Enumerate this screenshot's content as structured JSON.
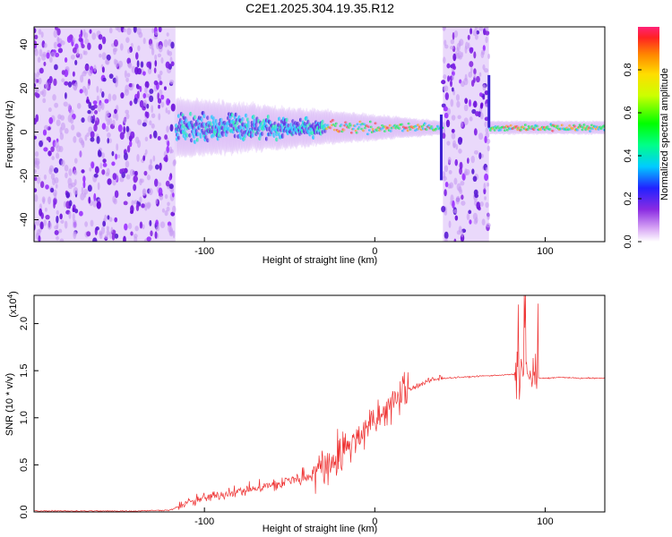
{
  "title": "C2E1.2025.304.19.35.R12",
  "chart_data": [
    {
      "type": "heatmap",
      "name": "spectrogram",
      "xlabel": "Height of straight line (km)",
      "ylabel": "Frequency (Hz)",
      "xlim": [
        -200,
        135
      ],
      "ylim": [
        -50,
        48
      ],
      "xticks": [
        -100,
        0,
        100
      ],
      "yticks": [
        -40,
        -20,
        0,
        20,
        40
      ],
      "xtick_labels": [
        "-100",
        "0",
        "100"
      ],
      "ytick_labels": [
        "-40",
        "-20",
        "0",
        "20",
        "40"
      ],
      "noise_regions": [
        [
          -200,
          -117
        ],
        [
          40,
          67
        ]
      ],
      "signal_band": {
        "start": -117,
        "end": 135,
        "center_hz": 2,
        "spread_start_hz": 9,
        "spread_end_hz": 2
      },
      "colorbar": {
        "label": "Normalized spectral amplitude",
        "range": [
          0.0,
          1.0
        ],
        "ticks": [
          0.0,
          0.2,
          0.4,
          0.6,
          0.8
        ],
        "tick_labels": [
          "0.0",
          "0.2",
          "0.4",
          "0.6",
          "0.8"
        ]
      }
    },
    {
      "type": "line",
      "name": "snr",
      "xlabel": "Height of straight line (km)",
      "ylabel": "SNR (10 * v/v)",
      "y_multiplier_label": "(x10",
      "y_multiplier_exp": "4",
      "xlim": [
        -200,
        135
      ],
      "ylim": [
        0,
        2.3
      ],
      "xticks": [
        -100,
        0,
        100
      ],
      "yticks": [
        0.0,
        0.5,
        1.0,
        1.5,
        2.0
      ],
      "xtick_labels": [
        "-100",
        "0",
        "100"
      ],
      "ytick_labels": [
        "0.0",
        "0.5",
        "1.0",
        "1.5",
        "2.0"
      ],
      "color": "#ee3333",
      "series": [
        {
          "name": "SNR",
          "x": [
            -200,
            -170,
            -140,
            -120,
            -112,
            -100,
            -80,
            -60,
            -40,
            -30,
            -20,
            -10,
            0,
            10,
            20,
            30,
            40,
            50,
            60,
            70,
            80,
            85,
            90,
            95,
            100,
            110,
            120,
            135
          ],
          "values": [
            0.01,
            0.01,
            0.01,
            0.02,
            0.08,
            0.15,
            0.22,
            0.28,
            0.38,
            0.5,
            0.6,
            0.8,
            0.95,
            1.15,
            1.3,
            1.38,
            1.42,
            1.43,
            1.44,
            1.45,
            1.46,
            1.45,
            1.45,
            1.42,
            1.42,
            1.43,
            1.42,
            1.42
          ]
        }
      ]
    }
  ]
}
